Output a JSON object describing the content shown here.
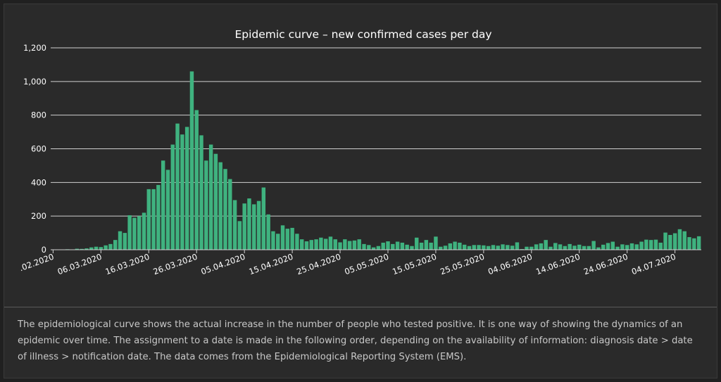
{
  "chart_data": {
    "type": "bar",
    "title": "Epidemic curve – new confirmed cases per day",
    "ylim": [
      0,
      1200
    ],
    "yticks": [
      "0",
      "200",
      "400",
      "600",
      "800",
      "1,000",
      "1,200"
    ],
    "ytick_values": [
      0,
      200,
      400,
      600,
      800,
      1000,
      1200
    ],
    "x_start": "2020-02-25",
    "xtick_labels": [
      ".02.2020",
      "06.03.2020",
      "16.03.2020",
      "26.03.2020",
      "05.04.2020",
      "15.04.2020",
      "25.04.2020",
      "05.05.2020",
      "15.05.2020",
      "25.05.2020",
      "04.06.2020",
      "14.06.2020",
      "24.06.2020",
      "04.07.2020"
    ],
    "xtick_indices": [
      0,
      10,
      20,
      30,
      40,
      50,
      60,
      70,
      80,
      90,
      100,
      110,
      120,
      130
    ],
    "values": [
      2,
      0,
      1,
      3,
      2,
      6,
      5,
      8,
      14,
      18,
      16,
      26,
      34,
      58,
      110,
      100,
      205,
      190,
      200,
      220,
      360,
      360,
      385,
      530,
      475,
      625,
      750,
      685,
      730,
      1060,
      830,
      680,
      530,
      625,
      570,
      520,
      480,
      420,
      295,
      170,
      275,
      305,
      270,
      290,
      370,
      210,
      110,
      95,
      145,
      125,
      130,
      95,
      62,
      50,
      58,
      62,
      72,
      65,
      78,
      62,
      44,
      62,
      52,
      55,
      62,
      34,
      28,
      14,
      22,
      42,
      50,
      34,
      48,
      42,
      30,
      22,
      72,
      42,
      58,
      42,
      78,
      18,
      24,
      38,
      48,
      42,
      30,
      22,
      28,
      28,
      26,
      22,
      28,
      24,
      32,
      28,
      24,
      44,
      4,
      18,
      18,
      32,
      38,
      58,
      18,
      40,
      32,
      22,
      34,
      24,
      30,
      22,
      22,
      52,
      14,
      30,
      40,
      48,
      18,
      32,
      28,
      38,
      32,
      48,
      60,
      58,
      60,
      42,
      102,
      88,
      98,
      122,
      110,
      75,
      68,
      80
    ],
    "bar_color": "#3fb27f",
    "grid": true,
    "legend": "none"
  },
  "description": "The epidemiological curve shows the actual increase in the number of people who tested positive. It is one way of showing the dynamics of an epidemic over time. The assignment to a date is made in the following order, depending on the availability of information: diagnosis date > date of illness > notification date. The data comes from the Epidemiological Reporting System (EMS).",
  "colors": {
    "background": "#2a2a2a",
    "grid": "#d0d0d0",
    "text": "#ffffff",
    "description_text": "#c8c8c8"
  }
}
